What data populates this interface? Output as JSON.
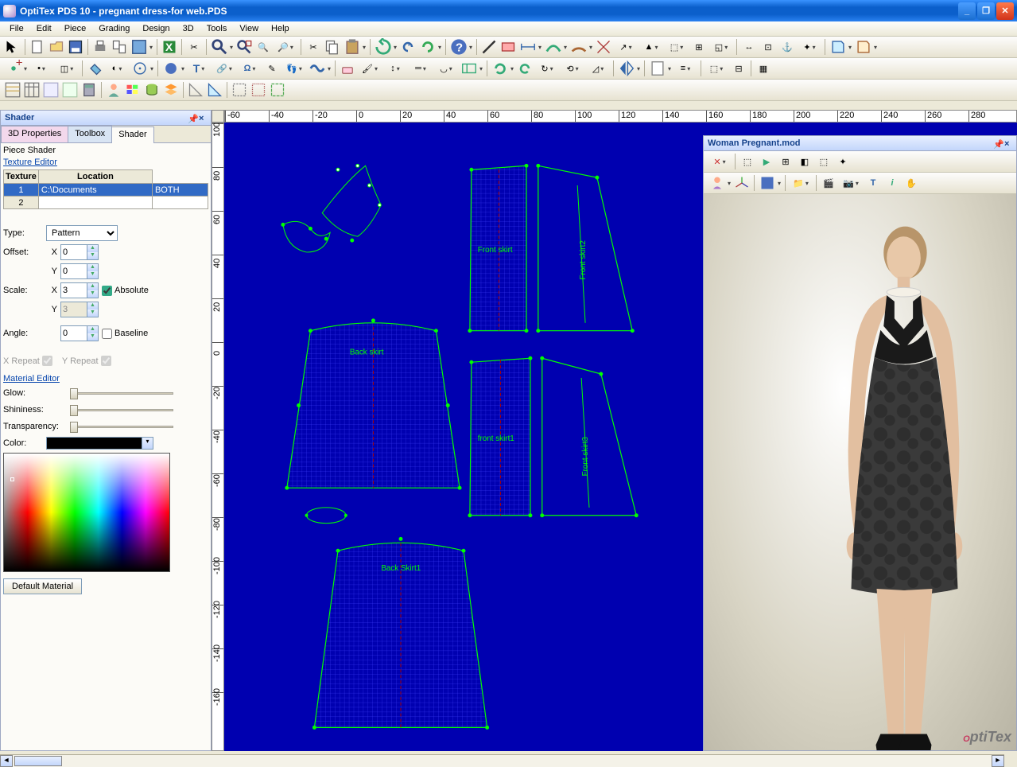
{
  "window": {
    "title": "OptiTex PDS 10 - pregnant dress-for web.PDS"
  },
  "menu": [
    "File",
    "Edit",
    "Piece",
    "Grading",
    "Design",
    "3D",
    "Tools",
    "View",
    "Help"
  ],
  "shader_panel": {
    "title": "Shader",
    "tabs": {
      "props": "3D Properties",
      "toolbox": "Toolbox",
      "shader": "Shader"
    },
    "piece_shader": "Piece Shader",
    "texture_editor": "Texture Editor",
    "cols": {
      "texture": "Texture",
      "location": "Location"
    },
    "row1": {
      "texture": "C:\\Documents",
      "location": "BOTH"
    },
    "type_lbl": "Type:",
    "type_val": "Pattern",
    "offset_lbl": "Offset:",
    "offset_x": "0",
    "offset_y": "0",
    "scale_lbl": "Scale:",
    "scale_x": "3",
    "scale_y": "3",
    "absolute": "Absolute",
    "angle_lbl": "Angle:",
    "angle_val": "0",
    "baseline": "Baseline",
    "xrep": "X Repeat",
    "yrep": "Y Repeat",
    "material_editor": "Material Editor",
    "glow": "Glow:",
    "shininess": "Shininess:",
    "transparency": "Transparency:",
    "color": "Color:",
    "default_material": "Default Material"
  },
  "ruler_h": [
    "-60",
    "-40",
    "-20",
    "0",
    "20",
    "40",
    "60",
    "80",
    "100",
    "120",
    "140",
    "160",
    "180",
    "200",
    "220",
    "240",
    "260",
    "280"
  ],
  "ruler_v": [
    "100",
    "80",
    "60",
    "40",
    "20",
    "0",
    "-20",
    "-40",
    "-60",
    "-80",
    "-100",
    "-120",
    "-140",
    "-160"
  ],
  "pieces": {
    "back_skirt": "Back skirt",
    "back_skirt1": "Back Skirt1",
    "front_skirt": "Front skirt",
    "front_skirt1": "front skirt1",
    "front_skirt2": "Front skirt2",
    "front_skirt3": "Front skirt3"
  },
  "panel3d": {
    "title": "Woman Pregnant.mod",
    "logo": "OptiTex"
  },
  "colors": {
    "canvas_bg": "#0000b0",
    "piece_stroke": "#00ff00",
    "piece_point": "#00ff00",
    "hatch": "#3a3aff",
    "grainline": "#ff0000",
    "titlebar_start": "#3a93ff",
    "titlebar_end": "#0b5fcb"
  }
}
